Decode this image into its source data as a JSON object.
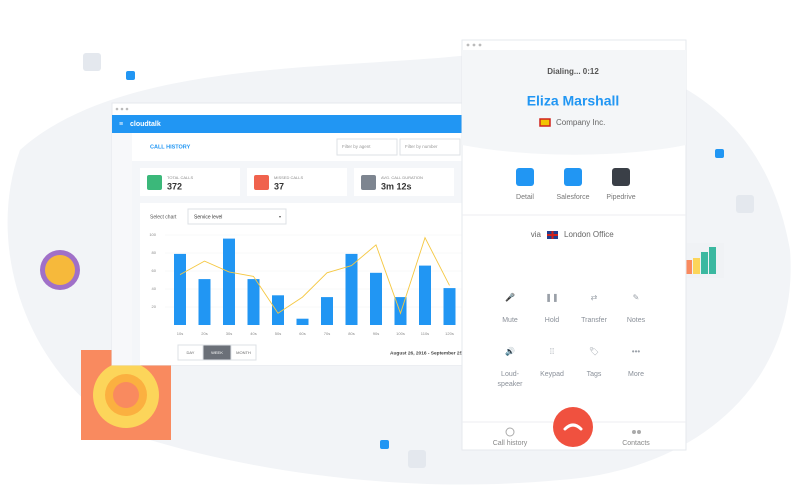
{
  "dashboard": {
    "brand": "cloudtalk",
    "section": "CALL HISTORY",
    "filters": [
      "Filter by agent",
      "Filter by number"
    ],
    "stats": [
      {
        "label": "TOTAL CALLS",
        "value": 372,
        "color": "#3bb87a"
      },
      {
        "label": "MISSED CALLS",
        "value": 37,
        "color": "#f0624d"
      },
      {
        "label": "AVG. CALL DURATION",
        "value": "3m 12s",
        "color": "#7d8590"
      }
    ],
    "chart_selector": {
      "label": "Select chart",
      "value": "Service level"
    },
    "chart": {
      "type": "bar",
      "categories": [
        "10s",
        "20s",
        "30s",
        "40s",
        "50s",
        "60s",
        "70s",
        "80s",
        "90s",
        "100s",
        "110s",
        "120s"
      ],
      "values": [
        79,
        51,
        96,
        51,
        33,
        7,
        31,
        79,
        58,
        31,
        66,
        41
      ],
      "line_values": [
        56,
        71,
        59,
        54,
        13,
        31,
        58,
        66,
        89,
        13,
        97,
        44
      ],
      "ylim": [
        0,
        100
      ],
      "yticks": [
        20,
        40,
        60,
        80,
        100
      ],
      "grid": true,
      "color": "#2196f3",
      "line_color": "#f5c842"
    },
    "periods": [
      "DAY",
      "WEEK",
      "MONTH"
    ],
    "active_period": 1,
    "date_range": "August 26, 2016 - September 25, 20"
  },
  "phone": {
    "status": "Dialing... 0:12",
    "contact": {
      "name": "Eliza Marshall",
      "company": "Company Inc."
    },
    "integrations": [
      "Detail",
      "Salesforce",
      "Pipedrive"
    ],
    "via": "via",
    "location": "London Office",
    "controls": [
      "Mute",
      "Hold",
      "Transfer",
      "Notes",
      "Loud-speaker",
      "Keypad",
      "Tags",
      "More"
    ],
    "nav": [
      "Call history",
      "Contacts"
    ]
  }
}
